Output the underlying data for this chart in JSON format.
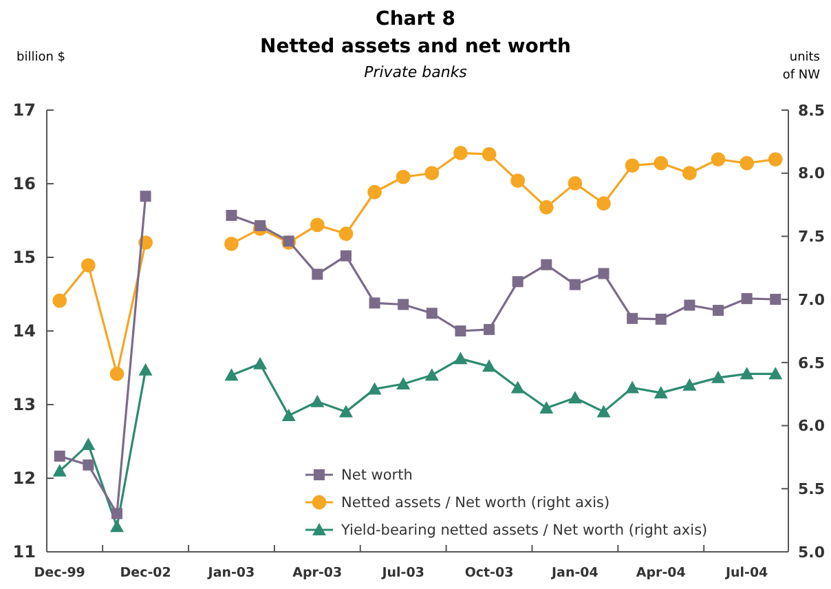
{
  "chart_data": {
    "type": "line",
    "title": "Chart 8\nNetted assets and net worth",
    "subtitle": "Private banks",
    "ylabel": "billion $",
    "y2label": "units\nof NW",
    "categories": [
      "Dec-99",
      null,
      null,
      "Dec-02",
      null,
      null,
      "Jan-03",
      null,
      null,
      "Apr-03",
      null,
      null,
      "Jul-03",
      null,
      null,
      "Oct-03",
      null,
      null,
      "Jan-04",
      null,
      null,
      "Apr-04",
      null,
      null,
      "Jul-04",
      null
    ],
    "ylim": [
      11,
      17
    ],
    "yticks": [
      11,
      12,
      13,
      14,
      15,
      16,
      17
    ],
    "y2lim": [
      5,
      8.5
    ],
    "y2ticks": [
      {
        "value": 5,
        "label": "5.0"
      },
      "5.5",
      {
        "value": 6,
        "label": "6.0"
      },
      "6.5",
      {
        "value": 7,
        "label": "7.0"
      },
      "7.5",
      {
        "value": 8,
        "label": "8.0"
      },
      "8.5"
    ],
    "grid": false,
    "legend": "bottom",
    "series": [
      {
        "name": "Net worth",
        "color": "#7b6b8a",
        "marker": "square",
        "values": [
          12.3,
          12.18,
          11.52,
          15.83,
          null,
          null,
          15.57,
          15.43,
          15.22,
          14.77,
          15.02,
          14.38,
          14.36,
          14.24,
          14.0,
          14.02,
          14.67,
          14.9,
          14.63,
          14.78,
          14.17,
          14.16,
          14.35,
          14.28,
          14.44,
          14.43
        ]
      },
      {
        "name": "Netted assets / Net worth (right axis)",
        "color": "#f5a623",
        "marker": "circle",
        "axis": "y2",
        "values": [
          6.99,
          7.27,
          6.41,
          7.45,
          null,
          null,
          7.44,
          7.56,
          7.45,
          7.59,
          7.52,
          7.85,
          7.97,
          8.0,
          8.16,
          8.15,
          7.94,
          7.73,
          7.92,
          7.76,
          8.06,
          8.08,
          8.0,
          8.11,
          8.08,
          8.11
        ]
      },
      {
        "name": "Yield-bearing netted assets / Net worth (right axis)",
        "color": "#2e8b72",
        "marker": "triangle",
        "axis": "y2",
        "values": [
          5.64,
          5.85,
          5.2,
          6.44,
          null,
          null,
          6.4,
          6.49,
          6.08,
          6.19,
          6.11,
          6.29,
          6.33,
          6.4,
          6.53,
          6.47,
          6.3,
          6.14,
          6.22,
          6.11,
          6.3,
          6.26,
          6.32,
          6.38,
          6.41,
          6.41
        ]
      }
    ]
  }
}
